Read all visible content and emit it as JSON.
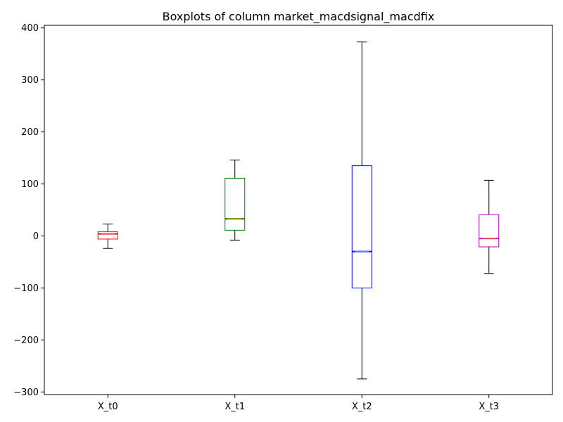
{
  "chart_data": {
    "type": "box",
    "title": "Boxplots of column market_macdsignal_macdfix",
    "xlabel": "",
    "ylabel": "",
    "ylim": [
      -305,
      405
    ],
    "yticks": [
      -300,
      -200,
      -100,
      0,
      100,
      200,
      300,
      400
    ],
    "ytick_labels": [
      "−300",
      "−200",
      "−100",
      "0",
      "100",
      "200",
      "300",
      "400"
    ],
    "grid": false,
    "categories": [
      "X_t0",
      "X_t1",
      "X_t2",
      "X_t3"
    ],
    "boxes": [
      {
        "category": "X_t0",
        "whisker_low": -24,
        "q1": -6,
        "median": 4,
        "q3": 8,
        "whisker_high": 23,
        "color": "#ff0000"
      },
      {
        "category": "X_t1",
        "whisker_low": -8,
        "q1": 11,
        "median": 33,
        "q3": 111,
        "whisker_high": 146,
        "color": "#008000"
      },
      {
        "category": "X_t2",
        "whisker_low": -275,
        "q1": -100,
        "median": -30,
        "q3": 135,
        "whisker_high": 373,
        "color": "#0000ff"
      },
      {
        "category": "X_t3",
        "whisker_low": -72,
        "q1": -21,
        "median": -5,
        "q3": 41,
        "whisker_high": 107,
        "color": "#bf00bf"
      }
    ],
    "median_color": "#ff7f0e",
    "whisker_color": "#000000"
  }
}
